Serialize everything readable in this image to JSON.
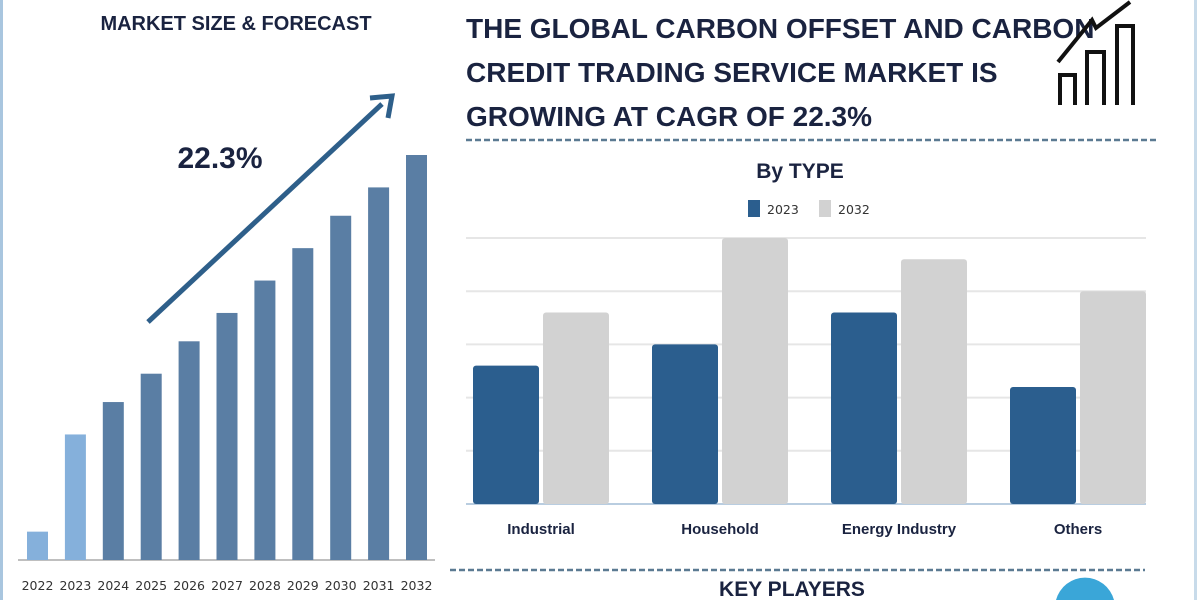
{
  "left_title": "MARKET SIZE & FORECAST",
  "headline": [
    "THE GLOBAL CARBON OFFSET AND CARBON",
    "CREDIT TRADING SERVICE MARKET IS",
    "GROWING AT CAGR OF 22.3%"
  ],
  "key_players_title": "KEY PLAYERS",
  "icons": {
    "header": "growth-chart-icon",
    "forecast_arrow": "arrow-up-right-icon"
  },
  "chart_data": [
    {
      "type": "bar",
      "title": "MARKET SIZE & FORECAST",
      "annotation": "22.3%",
      "categories": [
        "2022",
        "2023",
        "2024",
        "2025",
        "2026",
        "2027",
        "2028",
        "2029",
        "2030",
        "2031",
        "2032"
      ],
      "values": [
        7,
        31,
        39,
        46,
        54,
        61,
        69,
        77,
        85,
        92,
        100
      ],
      "value_note": "relative heights, no axis values printed",
      "colors": {
        "historic": "#85b0db",
        "forecast": "#5a7ea4"
      },
      "historic_categories": [
        "2022",
        "2023"
      ],
      "xlabel": "",
      "ylabel": "",
      "grid": false
    },
    {
      "type": "bar",
      "title": "By TYPE",
      "categories": [
        "Industrial",
        "Household",
        "Energy Industry",
        "Others"
      ],
      "series": [
        {
          "name": "2023",
          "values": [
            2.6,
            3.0,
            3.6,
            2.2
          ],
          "color": "#2b5e8e"
        },
        {
          "name": "2032",
          "values": [
            3.6,
            5.0,
            4.6,
            4.0
          ],
          "color": "#d2d2d2"
        }
      ],
      "ylim": [
        0,
        5
      ],
      "grid": true,
      "legend": "top-center",
      "xlabel": "",
      "ylabel": ""
    }
  ]
}
